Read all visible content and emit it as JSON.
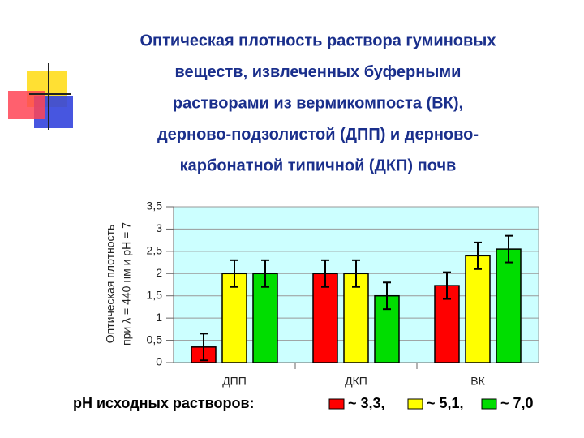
{
  "chart_data": {
    "type": "bar",
    "title": [
      "Оптическая плотность раствора гуминовых",
      "веществ, извлеченных буферными",
      "растворами из вермикомпоста (ВК),",
      "дерново-подзолистой (ДПП) и дерново-",
      "карбонатной типичной (ДКП) почв"
    ],
    "y_label": [
      "Оптическая плотность",
      "при λ = 440 нм и pH = 7"
    ],
    "categories": [
      "ДПП",
      "ДКП",
      "ВК"
    ],
    "legend_title": "pH исходных растворов:",
    "series": [
      {
        "name": "~ 3,3,",
        "color": "#ff0000",
        "values": [
          0.35,
          2.0,
          1.73
        ],
        "errors": [
          0.3,
          0.3,
          0.3
        ]
      },
      {
        "name": "~ 5,1,",
        "color": "#ffff00",
        "values": [
          2.0,
          2.0,
          2.4
        ],
        "errors": [
          0.3,
          0.3,
          0.3
        ]
      },
      {
        "name": "~ 7,0",
        "color": "#00dd00",
        "values": [
          2.0,
          1.5,
          2.55
        ],
        "errors": [
          0.3,
          0.3,
          0.3
        ]
      }
    ],
    "ylim": [
      0,
      3.5
    ],
    "yticks": [
      0,
      {
        "value": 0.5,
        "label": "0,5"
      },
      1,
      {
        "value": 1.5,
        "label": "1,5"
      },
      2,
      {
        "value": 2.5,
        "label": "2,5"
      },
      3,
      {
        "value": 3.5,
        "label": "3,5"
      }
    ],
    "grid": true
  }
}
